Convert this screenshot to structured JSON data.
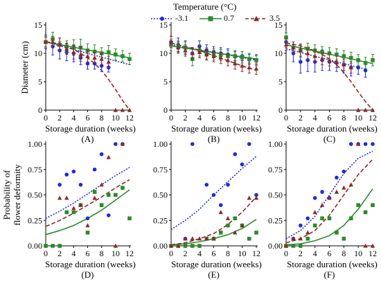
{
  "legend": {
    "title": "Temperature (°C)",
    "items": [
      {
        "label": "-3.1",
        "color": "#1f2bd6",
        "marker": "circle",
        "dash": "dotted"
      },
      {
        "label": "0.7",
        "color": "#2b8a2b",
        "marker": "square",
        "dash": "solid"
      },
      {
        "label": "3.5",
        "color": "#8b2a2a",
        "marker": "triangle",
        "dash": "dashed"
      }
    ]
  },
  "chart_data": [
    {
      "type": "scatter",
      "panel": "(A)",
      "xlabel": "Storage duration (weeks)",
      "ylabel": "Diameter (cm)",
      "xlim": [
        0,
        12
      ],
      "ylim": [
        0,
        15
      ],
      "xticks": [
        "0",
        "2",
        "4",
        "6",
        "8",
        "10",
        "12"
      ],
      "yticks": [
        "0",
        "5",
        "10",
        "15"
      ],
      "series": [
        {
          "name": "-3.1",
          "x": [
            0,
            1,
            2,
            3,
            4,
            5,
            6,
            7,
            8,
            9
          ],
          "y": [
            12,
            11.2,
            10.5,
            10.2,
            10,
            9.2,
            8.2,
            8.2,
            7.8,
            7.5
          ],
          "err": [
            1.2,
            1.5,
            1.5,
            1.5,
            1.5,
            1.2,
            1,
            1,
            1,
            0.8
          ]
        },
        {
          "name": "0.7",
          "x": [
            0,
            1,
            2,
            3,
            4,
            5,
            6,
            7,
            8,
            9,
            10,
            11,
            12
          ],
          "y": [
            12,
            12.5,
            11.5,
            11.2,
            11,
            11,
            10.5,
            10.3,
            10,
            10.2,
            9.8,
            9.5,
            9
          ],
          "err": [
            1,
            1.2,
            1.2,
            1,
            1.4,
            1.5,
            1.2,
            1.2,
            1,
            1.2,
            1,
            1,
            1
          ]
        },
        {
          "name": "3.5",
          "x": [
            0,
            1,
            2,
            3,
            4,
            5,
            6,
            7,
            8,
            9,
            10,
            11,
            12
          ],
          "y": [
            12,
            12,
            11.5,
            10.8,
            10.2,
            9.8,
            9.5,
            9.2,
            9,
            8.5,
            0,
            0,
            0
          ],
          "err": [
            0.8,
            1,
            1.2,
            1,
            1.2,
            1.2,
            1,
            1,
            1,
            1,
            0,
            0,
            0
          ]
        }
      ],
      "fits": [
        {
          "series": "-3.1",
          "x": [
            0,
            12
          ],
          "y": [
            12,
            8
          ]
        },
        {
          "series": "0.7",
          "x": [
            0,
            12
          ],
          "y": [
            12,
            9.2
          ]
        },
        {
          "series": "3.5",
          "x": [
            0,
            1,
            2,
            3,
            4,
            5,
            6,
            7,
            8,
            9,
            10,
            11,
            12
          ],
          "y": [
            12,
            11.9,
            11.6,
            11.2,
            10.7,
            10,
            9.2,
            8.2,
            7,
            5.4,
            3.6,
            1.7,
            0
          ]
        }
      ]
    },
    {
      "type": "scatter",
      "panel": "(B)",
      "xlabel": "Storage duration (weeks)",
      "ylabel": "",
      "xlim": [
        0,
        12
      ],
      "ylim": [
        0,
        15
      ],
      "xticks": [
        "0",
        "2",
        "4",
        "6",
        "8",
        "10",
        "12"
      ],
      "yticks": [
        "0",
        "5",
        "10",
        "15"
      ],
      "series": [
        {
          "name": "-3.1",
          "x": [
            0,
            1,
            2,
            3,
            4,
            5,
            6,
            7,
            8,
            9,
            10,
            11,
            12
          ],
          "y": [
            12,
            11.5,
            11,
            10,
            11.2,
            10.5,
            10.2,
            10,
            9.8,
            9.5,
            9.5,
            9,
            8.8
          ],
          "err": [
            1,
            1.2,
            1.2,
            1,
            1,
            1,
            1,
            1,
            1,
            0.8,
            0.8,
            0.8,
            0.8
          ]
        },
        {
          "name": "0.7",
          "x": [
            0,
            1,
            2,
            3,
            4,
            5,
            6,
            7,
            8,
            9,
            10,
            11,
            12
          ],
          "y": [
            11.5,
            11.2,
            11,
            9,
            10.5,
            10,
            9.8,
            9.7,
            9.5,
            9.5,
            9.3,
            9,
            8.8
          ],
          "err": [
            1,
            1,
            1,
            1.2,
            1,
            1,
            1,
            1,
            1,
            1,
            1,
            1,
            1
          ]
        },
        {
          "name": "3.5",
          "x": [
            0,
            1,
            2,
            3,
            4,
            5,
            6,
            7,
            8,
            9,
            10,
            11,
            12
          ],
          "y": [
            12,
            11,
            10.5,
            10,
            10.2,
            9.8,
            9.5,
            9.2,
            8.8,
            8.2,
            7.8,
            7.5,
            7.3
          ],
          "err": [
            1,
            1,
            1,
            1,
            1,
            1,
            1,
            1,
            1,
            1,
            1,
            1,
            1
          ]
        }
      ],
      "fits": [
        {
          "series": "-3.1",
          "x": [
            0,
            12
          ],
          "y": [
            11.5,
            8.8
          ]
        },
        {
          "series": "0.7",
          "x": [
            0,
            12
          ],
          "y": [
            11.3,
            9
          ]
        },
        {
          "series": "3.5",
          "x": [
            0,
            2,
            4,
            6,
            8,
            10,
            12
          ],
          "y": [
            11.8,
            11.2,
            10.5,
            9.6,
            8.7,
            7.8,
            7
          ]
        }
      ]
    },
    {
      "type": "scatter",
      "panel": "(C)",
      "xlabel": "Storage duration (weeks)",
      "ylabel": "",
      "xlim": [
        0,
        12
      ],
      "ylim": [
        0,
        15
      ],
      "xticks": [
        "0",
        "2",
        "4",
        "6",
        "8",
        "10",
        "12"
      ],
      "yticks": [
        "0",
        "5",
        "10",
        "15"
      ],
      "series": [
        {
          "name": "-3.1",
          "x": [
            0,
            1,
            2,
            3,
            4,
            5,
            6,
            7,
            8,
            9,
            10,
            11
          ],
          "y": [
            12,
            10,
            8.5,
            8.8,
            8.5,
            8.8,
            8.5,
            8.3,
            8,
            7.5,
            7.5,
            7
          ],
          "err": [
            1,
            1.5,
            2,
            2,
            1.8,
            1.8,
            1.5,
            1.5,
            1.5,
            1.5,
            1.2,
            1.2
          ]
        },
        {
          "name": "0.7",
          "x": [
            0,
            1,
            2,
            3,
            4,
            5,
            6,
            7,
            8,
            9,
            10,
            11,
            12
          ],
          "y": [
            12.8,
            11,
            10.5,
            10.8,
            10.5,
            10.2,
            10,
            9.8,
            9.5,
            9.2,
            8.8,
            8.3,
            8.8
          ],
          "err": [
            0.8,
            1,
            1.2,
            1,
            1,
            1,
            1,
            1,
            1,
            1,
            1,
            1,
            1
          ]
        },
        {
          "name": "3.5",
          "x": [
            0,
            1,
            2,
            3,
            4,
            5,
            6,
            7,
            8,
            9,
            10,
            11,
            12
          ],
          "y": [
            11.5,
            11,
            10.5,
            10,
            9.5,
            9,
            8.8,
            8.5,
            8,
            7.5,
            0,
            0,
            0
          ],
          "err": [
            1,
            1,
            1,
            1,
            1,
            1,
            1,
            1,
            1,
            1,
            0,
            0,
            0
          ]
        }
      ],
      "fits": [
        {
          "series": "-3.1",
          "x": [
            0,
            11
          ],
          "y": [
            10.8,
            7.2
          ]
        },
        {
          "series": "0.7",
          "x": [
            0,
            12
          ],
          "y": [
            11.5,
            8.2
          ]
        },
        {
          "series": "3.5",
          "x": [
            0,
            1,
            2,
            3,
            4,
            5,
            6,
            7,
            8,
            9,
            10,
            11,
            12
          ],
          "y": [
            11.8,
            11.6,
            11.3,
            10.9,
            10.4,
            9.8,
            9,
            8,
            6.6,
            5,
            3.2,
            1.5,
            0
          ]
        }
      ]
    },
    {
      "type": "scatter",
      "panel": "(D)",
      "xlabel": "Storage duration (weeks)",
      "ylabel": "Probability of flower deformity",
      "xlim": [
        0,
        12
      ],
      "ylim": [
        0,
        1
      ],
      "xticks": [
        "0",
        "2",
        "4",
        "6",
        "8",
        "10",
        "12"
      ],
      "yticks": [
        "0.00",
        "0.25",
        "0.50",
        "0.75",
        "1.00"
      ],
      "series": [
        {
          "name": "-3.1",
          "x": [
            2,
            3,
            4,
            5,
            6,
            7,
            8,
            9,
            10,
            11
          ],
          "y": [
            0.6,
            0.7,
            0.73,
            0.6,
            0.27,
            0.75,
            0.9,
            0.3,
            1,
            1
          ]
        },
        {
          "name": "0.7",
          "x": [
            0,
            1,
            2,
            3,
            4,
            5,
            6,
            7,
            8,
            9,
            10,
            11,
            12
          ],
          "y": [
            0,
            0,
            0,
            0.33,
            0.33,
            0.4,
            0.13,
            0.53,
            0.4,
            0.5,
            0.5,
            0.57,
            0.27
          ]
        },
        {
          "name": "3.5",
          "x": [
            2,
            3,
            4,
            5,
            6,
            7,
            8,
            9,
            10,
            11
          ],
          "y": [
            0.47,
            0.47,
            0.37,
            0.4,
            0.2,
            0.47,
            0.6,
            0.87,
            0,
            1
          ]
        }
      ],
      "fits": [
        {
          "series": "-3.1",
          "x": [
            0,
            2,
            4,
            6,
            8,
            10,
            12
          ],
          "y": [
            0.27,
            0.34,
            0.42,
            0.51,
            0.6,
            0.69,
            0.77
          ]
        },
        {
          "series": "0.7",
          "x": [
            0,
            2,
            4,
            6,
            8,
            10,
            12
          ],
          "y": [
            0.11,
            0.15,
            0.2,
            0.27,
            0.35,
            0.45,
            0.55
          ]
        },
        {
          "series": "3.5",
          "x": [
            0,
            2,
            4,
            6,
            8,
            10,
            12
          ],
          "y": [
            0.19,
            0.25,
            0.32,
            0.4,
            0.48,
            0.57,
            0.65
          ]
        }
      ]
    },
    {
      "type": "scatter",
      "panel": "(E)",
      "xlabel": "Storage duration (weeks)",
      "ylabel": "",
      "xlim": [
        0,
        12
      ],
      "ylim": [
        0,
        1
      ],
      "xticks": [
        "0",
        "2",
        "4",
        "6",
        "8",
        "10",
        "12"
      ],
      "yticks": [
        "0.00",
        "0.25",
        "0.50",
        "0.75",
        "1.00"
      ],
      "series": [
        {
          "name": "-3.1",
          "x": [
            0,
            1,
            2,
            3,
            4,
            5,
            6,
            7,
            8,
            9,
            10,
            11,
            12
          ],
          "y": [
            0,
            0,
            0.07,
            1,
            0,
            0.6,
            0.5,
            0.4,
            0.6,
            0.9,
            0.8,
            1,
            0.5
          ]
        },
        {
          "name": "0.7",
          "x": [
            0,
            1,
            2,
            3,
            4,
            5,
            6,
            7,
            8,
            9,
            10,
            11,
            12
          ],
          "y": [
            0,
            0,
            0,
            0,
            0,
            0.07,
            0.07,
            0.13,
            0.2,
            0.27,
            0.2,
            0.07,
            0.13
          ]
        },
        {
          "name": "3.5",
          "x": [
            0,
            1,
            2,
            3,
            4,
            5,
            6,
            7,
            8,
            9,
            10,
            11,
            12
          ],
          "y": [
            0,
            0,
            0.07,
            0.07,
            0.07,
            0.07,
            0.07,
            0.33,
            0.27,
            0.13,
            0.2,
            0.47,
            0.47
          ]
        }
      ],
      "fits": [
        {
          "series": "-3.1",
          "x": [
            0,
            2,
            4,
            6,
            8,
            10,
            12
          ],
          "y": [
            0.16,
            0.25,
            0.36,
            0.5,
            0.63,
            0.76,
            0.88
          ]
        },
        {
          "series": "0.7",
          "x": [
            0,
            2,
            4,
            6,
            8,
            10,
            12
          ],
          "y": [
            0.01,
            0.02,
            0.04,
            0.07,
            0.11,
            0.17,
            0.26
          ]
        },
        {
          "series": "3.5",
          "x": [
            0,
            2,
            4,
            6,
            8,
            10,
            12
          ],
          "y": [
            0.01,
            0.03,
            0.07,
            0.12,
            0.21,
            0.33,
            0.48
          ]
        }
      ]
    },
    {
      "type": "scatter",
      "panel": "(F)",
      "xlabel": "Storage duration (weeks)",
      "ylabel": "",
      "xlim": [
        0,
        12
      ],
      "ylim": [
        0,
        1
      ],
      "xticks": [
        "0",
        "2",
        "4",
        "6",
        "8",
        "10",
        "12"
      ],
      "yticks": [
        "0.00",
        "0.25",
        "0.50",
        "0.75",
        "1.00"
      ],
      "series": [
        {
          "name": "-3.1",
          "x": [
            0,
            1,
            2,
            3,
            4,
            5,
            6,
            7,
            8,
            9,
            10,
            11,
            12
          ],
          "y": [
            0,
            0.07,
            0.2,
            0.27,
            0.47,
            0.53,
            0.47,
            0.67,
            0.73,
            1,
            1,
            1,
            1
          ]
        },
        {
          "name": "0.7",
          "x": [
            0,
            1,
            2,
            3,
            4,
            5,
            6,
            7,
            8,
            9,
            10,
            11,
            12
          ],
          "y": [
            0,
            0,
            0,
            0.07,
            0.2,
            0.27,
            0.27,
            0.13,
            0.07,
            0.27,
            0.4,
            0.33,
            0.4
          ]
        },
        {
          "name": "3.5",
          "x": [
            0,
            1,
            2,
            3,
            4,
            5,
            6,
            7,
            8,
            9,
            10,
            11,
            12
          ],
          "y": [
            0,
            0.07,
            0.07,
            0.13,
            0.33,
            0.4,
            0.47,
            0.53,
            0.57,
            0.6,
            1,
            0,
            0
          ]
        }
      ],
      "fits": [
        {
          "series": "-3.1",
          "x": [
            0,
            2,
            4,
            6,
            8,
            10,
            12
          ],
          "y": [
            0.07,
            0.15,
            0.29,
            0.5,
            0.71,
            0.86,
            0.93
          ]
        },
        {
          "series": "0.7",
          "x": [
            0,
            2,
            4,
            6,
            8,
            10,
            12
          ],
          "y": [
            0.01,
            0.02,
            0.05,
            0.1,
            0.2,
            0.36,
            0.56
          ]
        },
        {
          "series": "3.5",
          "x": [
            0,
            2,
            4,
            6,
            8,
            10,
            12
          ],
          "y": [
            0.03,
            0.07,
            0.15,
            0.3,
            0.5,
            0.7,
            0.85
          ]
        }
      ]
    }
  ]
}
